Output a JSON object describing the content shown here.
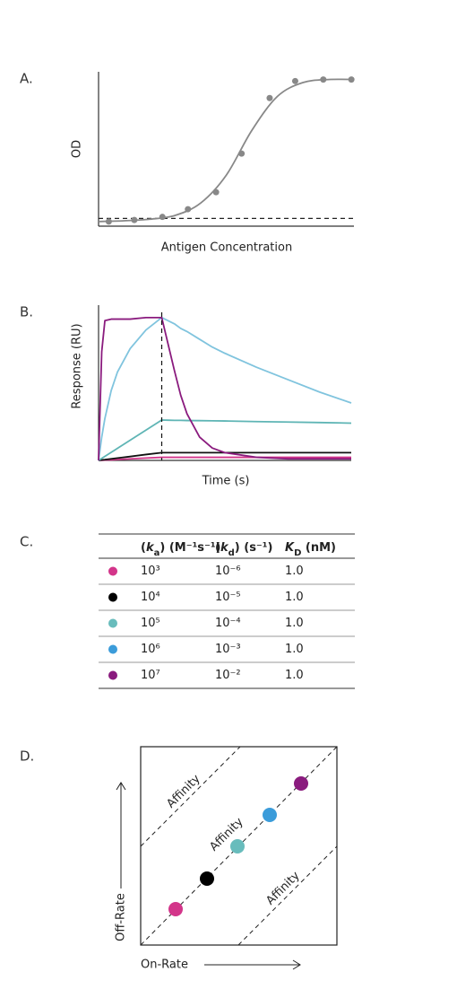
{
  "panels": [
    "A.",
    "B.",
    "C.",
    "D."
  ],
  "chart_data": [
    {
      "type": "scatter",
      "xlabel": "Antigen Concentration",
      "ylabel": "OD",
      "xlim": [
        0,
        10
      ],
      "ylim": [
        0,
        1
      ],
      "color": "#888888",
      "x": [
        0.4,
        1.4,
        2.5,
        3.5,
        4.6,
        5.6,
        6.7,
        7.7,
        8.8,
        9.9
      ],
      "values": [
        0.03,
        0.04,
        0.06,
        0.11,
        0.22,
        0.47,
        0.83,
        0.94,
        0.95,
        0.95
      ],
      "fit": {
        "x": [
          0,
          1,
          2,
          3,
          4,
          5,
          6,
          7,
          8,
          9,
          10
        ],
        "values": [
          0.03,
          0.035,
          0.045,
          0.07,
          0.15,
          0.33,
          0.62,
          0.84,
          0.93,
          0.95,
          0.95
        ]
      },
      "baseline": 0.05
    },
    {
      "type": "line",
      "xlabel": "Time (s)",
      "ylabel": "Response (RU)",
      "xlim": [
        0,
        400
      ],
      "ylim": [
        0,
        100
      ],
      "marker_line": 100,
      "x": [
        0,
        5,
        10,
        20,
        30,
        50,
        75,
        100,
        110,
        120,
        130,
        140,
        160,
        180,
        200,
        250,
        300,
        350,
        400
      ],
      "series": [
        {
          "color": "#d3358a",
          "values": [
            0,
            0.1,
            0.2,
            0.4,
            0.6,
            1,
            1.5,
            2,
            2,
            2,
            2,
            2,
            2,
            2,
            2,
            2,
            2,
            2,
            2
          ]
        },
        {
          "color": "#111111",
          "values": [
            0,
            0.3,
            0.5,
            1,
            1.5,
            2.5,
            3.8,
            5,
            5,
            5,
            5,
            5,
            5,
            5,
            5,
            5,
            5,
            5,
            5
          ]
        },
        {
          "color": "#5fb5b5",
          "values": [
            0,
            1.3,
            2.6,
            5.2,
            7.8,
            13,
            19.5,
            26,
            25.9,
            25.8,
            25.8,
            25.7,
            25.6,
            25.5,
            25.4,
            25,
            24.7,
            24.4,
            24
          ]
        },
        {
          "color": "#80c4de",
          "values": [
            0,
            15,
            27,
            45,
            57,
            72,
            84,
            92,
            90,
            88,
            85,
            83,
            78,
            73,
            69,
            60,
            52,
            44,
            37
          ]
        },
        {
          "color": "#8a1b7e",
          "values": [
            0,
            70,
            90,
            91,
            91,
            91,
            92,
            92,
            75,
            58,
            42,
            30,
            15,
            8,
            5,
            2,
            1,
            1,
            1
          ]
        }
      ]
    }
  ],
  "table": {
    "header": [
      [
        {
          "text": "("
        },
        {
          "text": "k",
          "italic": true
        },
        {
          "text": "a",
          "sub": true
        },
        {
          "text": ") (M⁻¹s⁻¹)"
        }
      ],
      [
        {
          "text": "("
        },
        {
          "text": "k",
          "italic": true
        },
        {
          "text": "d",
          "sub": true
        },
        {
          "text": ") (s⁻¹)"
        }
      ],
      [
        {
          "text": "K",
          "italic": true
        },
        {
          "text": "D",
          "sub": true
        },
        {
          "text": " (nM)"
        }
      ]
    ],
    "rows": [
      {
        "color": "#d3358a",
        "cells": [
          "10³",
          "10⁻⁶",
          "1.0"
        ]
      },
      {
        "color": "#000000",
        "cells": [
          "10⁴",
          "10⁻⁵",
          "1.0"
        ]
      },
      {
        "color": "#68bcbc",
        "cells": [
          "10⁵",
          "10⁻⁴",
          "1.0"
        ]
      },
      {
        "color": "#3b9cda",
        "cells": [
          "10⁶",
          "10⁻³",
          "1.0"
        ]
      },
      {
        "color": "#8a1b7e",
        "cells": [
          "10⁷",
          "10⁻²",
          "1.0"
        ]
      }
    ]
  },
  "diagram": {
    "x_label": "On-Rate",
    "y_label": "Off-Rate",
    "line_labels": [
      "Affinity",
      "Affinity",
      "Affinity"
    ],
    "points": [
      {
        "color": "#d3358a"
      },
      {
        "color": "#000000"
      },
      {
        "color": "#68bcbc"
      },
      {
        "color": "#3b9cda"
      },
      {
        "color": "#8a1b7e"
      }
    ]
  }
}
